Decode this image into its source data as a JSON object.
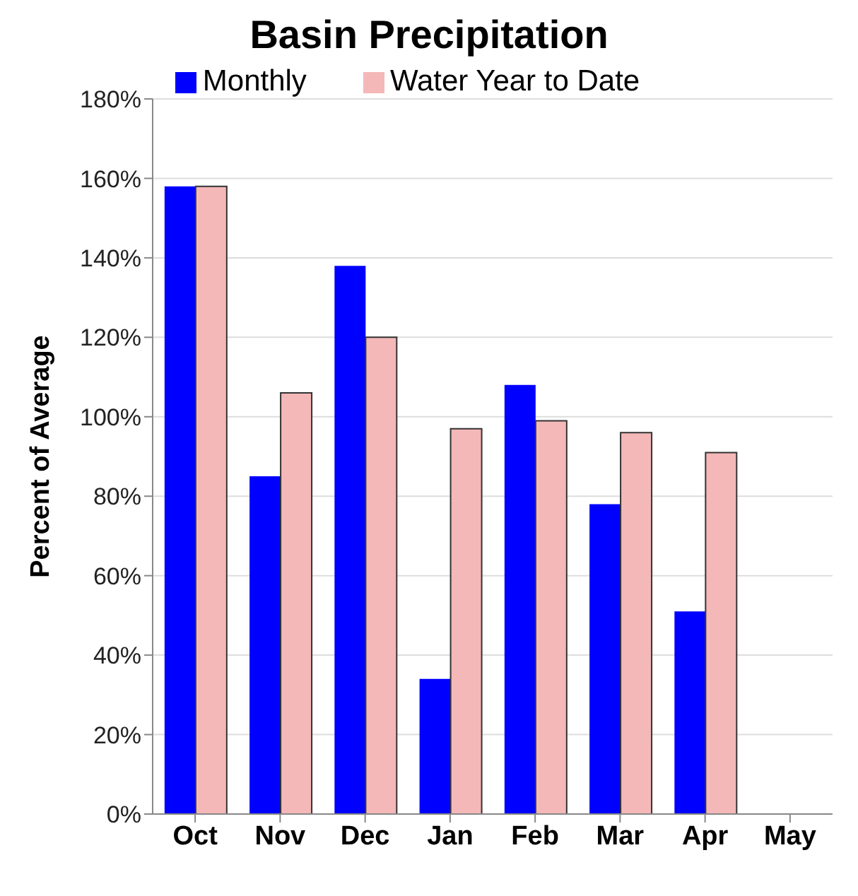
{
  "chart_data": {
    "type": "bar",
    "title": "Basin Precipitation",
    "ylabel": "Percent of Average",
    "categories": [
      "Oct",
      "Nov",
      "Dec",
      "Jan",
      "Feb",
      "Mar",
      "Apr",
      "May"
    ],
    "series": [
      {
        "name": "Monthly",
        "color": "#0000ff",
        "values": [
          158,
          85,
          138,
          34,
          108,
          78,
          51,
          null
        ]
      },
      {
        "name": "Water Year to Date",
        "color": "#f4b8b8",
        "values": [
          158,
          106,
          120,
          97,
          99,
          96,
          91,
          null
        ]
      }
    ],
    "ylim": [
      0,
      180
    ],
    "yticks": [
      {
        "value": 0,
        "label": "0%"
      },
      {
        "value": 20,
        "label": "20%"
      },
      {
        "value": 40,
        "label": "40%"
      },
      {
        "value": 60,
        "label": "60%"
      },
      {
        "value": 80,
        "label": "80%"
      },
      {
        "value": 100,
        "label": "100%"
      },
      {
        "value": 120,
        "label": "120%"
      },
      {
        "value": 140,
        "label": "140%"
      },
      {
        "value": 160,
        "label": "160%"
      },
      {
        "value": 180,
        "label": "180%"
      }
    ],
    "grid": "y",
    "legend": "top"
  }
}
